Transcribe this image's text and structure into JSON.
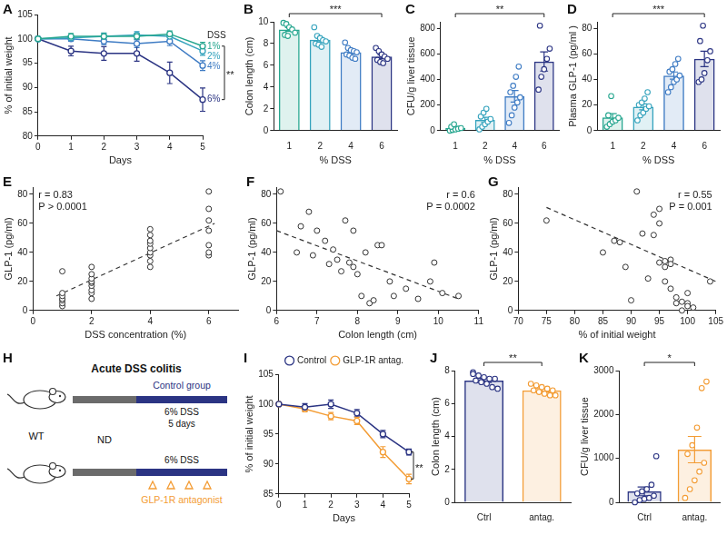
{
  "chart_data": [
    {
      "panel": "A",
      "type": "line",
      "x_label": "Days",
      "y_label": "% of initial weight",
      "x": [
        0,
        1,
        2,
        3,
        4,
        5
      ],
      "xlim": [
        0,
        5
      ],
      "xticks": [
        0,
        1,
        2,
        3,
        4,
        5
      ],
      "ylim": [
        80,
        105
      ],
      "yticks": [
        80,
        85,
        90,
        95,
        100,
        105
      ],
      "legend": "right",
      "legend_title": "DSS",
      "marker": "circle",
      "series": [
        {
          "name": "1%",
          "color": "#26a68f",
          "values": [
            100,
            100.5,
            100.5,
            100.5,
            101,
            98.5
          ],
          "errors": [
            0,
            0.6,
            0.7,
            0.6,
            0.6,
            0.8
          ]
        },
        {
          "name": "2%",
          "color": "#35a3bd",
          "values": [
            100,
            100.2,
            100.5,
            100.8,
            100.5,
            97.5
          ],
          "errors": [
            0,
            0.5,
            0.6,
            0.7,
            0.8,
            0.9
          ]
        },
        {
          "name": "4%",
          "color": "#3f7cc4",
          "values": [
            100,
            100,
            99.5,
            99,
            99.5,
            94.5
          ],
          "errors": [
            0,
            0.5,
            0.7,
            0.8,
            0.9,
            1.0
          ]
        },
        {
          "name": "6%",
          "color": "#2b3483",
          "values": [
            100,
            97.5,
            97,
            97,
            93,
            87.5
          ],
          "errors": [
            0,
            1.0,
            1.4,
            1.6,
            2.2,
            2.4
          ]
        }
      ],
      "annotations": [
        "**"
      ]
    },
    {
      "panel": "B",
      "type": "bar",
      "x_label": "% DSS",
      "y_label": "Colon length (cm)",
      "categories": [
        "1",
        "2",
        "4",
        "6"
      ],
      "values": [
        9.3,
        8.35,
        7.2,
        6.8
      ],
      "errors": [
        0.17,
        0.2,
        0.16,
        0.17
      ],
      "points": [
        [
          9.9,
          9.8,
          9.5,
          9.3,
          9.0,
          8.8,
          8.7
        ],
        [
          9.5,
          8.7,
          8.5,
          8.3,
          8.2,
          8.0,
          7.9,
          7.7
        ],
        [
          8.1,
          7.6,
          7.4,
          7.3,
          7.2,
          7.0,
          6.9,
          6.7,
          6.6
        ],
        [
          7.6,
          7.3,
          7.0,
          6.8,
          6.6,
          6.5,
          6.3,
          6.2
        ]
      ],
      "colors": [
        "#26a68f",
        "#35a3bd",
        "#3f7cc4",
        "#2b3483"
      ],
      "ylim": [
        0,
        10
      ],
      "yticks": [
        0,
        2,
        4,
        6,
        8,
        10
      ],
      "annotations": [
        "***"
      ]
    },
    {
      "panel": "C",
      "type": "bar",
      "x_label": "% DSS",
      "y_label": "CFU/g liver tissue",
      "categories": [
        "1",
        "2",
        "4",
        "6"
      ],
      "values": [
        19,
        84,
        268,
        540
      ],
      "errors": [
        7,
        20,
        45,
        75
      ],
      "points": [
        [
          0,
          5,
          10,
          15,
          20,
          30,
          50
        ],
        [
          10,
          30,
          50,
          70,
          90,
          110,
          140,
          170
        ],
        [
          60,
          120,
          180,
          220,
          260,
          300,
          350,
          420,
          500
        ],
        [
          320,
          420,
          480,
          560,
          640,
          820
        ]
      ],
      "colors": [
        "#26a68f",
        "#35a3bd",
        "#3f7cc4",
        "#2b3483"
      ],
      "ylim": [
        0,
        850
      ],
      "yticks": [
        0,
        200,
        400,
        600,
        800
      ],
      "annotations": [
        "**"
      ]
    },
    {
      "panel": "D",
      "type": "bar",
      "x_label": "% DSS",
      "y_label": "Plasma GLP-1 (pg/ml )",
      "categories": [
        "1",
        "2",
        "4",
        "6"
      ],
      "values": [
        10.3,
        18.6,
        43,
        56
      ],
      "errors": [
        3,
        2.3,
        2.8,
        6
      ],
      "points": [
        [
          3,
          5,
          7,
          8,
          10,
          12,
          27
        ],
        [
          8,
          12,
          14,
          17,
          19,
          20,
          22,
          25,
          30
        ],
        [
          30,
          34,
          38,
          40,
          43,
          46,
          48,
          52,
          56
        ],
        [
          38,
          40,
          45,
          55,
          62,
          70,
          82
        ]
      ],
      "colors": [
        "#26a68f",
        "#35a3bd",
        "#3f7cc4",
        "#2b3483"
      ],
      "ylim": [
        0,
        85
      ],
      "yticks": [
        0,
        20,
        40,
        60,
        80
      ],
      "annotations": [
        "***"
      ]
    },
    {
      "panel": "E",
      "type": "scatter",
      "x_label": "DSS concentration (%)",
      "y_label": "GLP-1 (pg/ml)",
      "xlim": [
        0,
        7
      ],
      "xticks": [
        0,
        2,
        4,
        6
      ],
      "ylim": [
        0,
        85
      ],
      "yticks": [
        0,
        20,
        40,
        60,
        80
      ],
      "series": [
        {
          "type": "scatter",
          "marker": "circle",
          "color": "#333333",
          "x": [
            1,
            1,
            1,
            1,
            1,
            1,
            1,
            2,
            2,
            2,
            2,
            2,
            2,
            2,
            2,
            2,
            4,
            4,
            4,
            4,
            4,
            4,
            4,
            4,
            4,
            6,
            6,
            6,
            6,
            6,
            6,
            6
          ],
          "values": [
            3,
            5,
            7,
            8,
            10,
            12,
            27,
            8,
            12,
            14,
            17,
            19,
            20,
            22,
            25,
            30,
            30,
            34,
            38,
            40,
            43,
            46,
            48,
            52,
            56,
            38,
            40,
            45,
            55,
            62,
            70,
            82
          ]
        },
        {
          "type": "line",
          "line_style": "dashed",
          "color": "#333333",
          "x": [
            0.8,
            6.2
          ],
          "values": [
            10,
            60
          ]
        }
      ],
      "annotations": [
        "r = 0.83",
        "P > 0.0001"
      ]
    },
    {
      "panel": "F",
      "type": "scatter",
      "x_label": "Colon length (cm)",
      "y_label": "GLP-1 (pg/ml)",
      "xlim": [
        6,
        11
      ],
      "xticks": [
        6,
        7,
        8,
        9,
        10,
        11
      ],
      "ylim": [
        0,
        85
      ],
      "yticks": [
        0,
        20,
        40,
        60,
        80
      ],
      "series": [
        {
          "type": "scatter",
          "marker": "circle",
          "color": "#333333",
          "x": [
            6.1,
            6.5,
            6.6,
            6.8,
            6.9,
            7.0,
            7.2,
            7.3,
            7.4,
            7.5,
            7.6,
            7.7,
            7.8,
            7.9,
            7.9,
            8.0,
            8.1,
            8.2,
            8.3,
            8.4,
            8.5,
            8.6,
            8.8,
            8.9,
            9.2,
            9.5,
            9.8,
            9.9,
            10.1,
            10.5
          ],
          "values": [
            82,
            40,
            58,
            68,
            38,
            55,
            48,
            32,
            42,
            35,
            27,
            62,
            33,
            55,
            30,
            25,
            10,
            40,
            5,
            7,
            45,
            45,
            20,
            10,
            15,
            8,
            20,
            33,
            12,
            10
          ]
        },
        {
          "type": "line",
          "line_style": "dashed",
          "color": "#333333",
          "x": [
            6,
            10.5
          ],
          "values": [
            55,
            8
          ]
        }
      ],
      "annotations": [
        "r = 0.6",
        "P = 0.0002"
      ]
    },
    {
      "panel": "G",
      "type": "scatter",
      "x_label": "% of initial weight",
      "y_label": "GLP-1 (pg/ml)",
      "xlim": [
        70,
        105
      ],
      "xticks": [
        70,
        75,
        80,
        85,
        90,
        95,
        100,
        105
      ],
      "ylim": [
        0,
        85
      ],
      "yticks": [
        0,
        20,
        40,
        60,
        80
      ],
      "series": [
        {
          "type": "scatter",
          "marker": "circle",
          "color": "#333333",
          "x": [
            75,
            85,
            87,
            88,
            89,
            90,
            91,
            92,
            93,
            94,
            94,
            95,
            95,
            95,
            96,
            96,
            96,
            97,
            97,
            97,
            98,
            98,
            99,
            99,
            100,
            100,
            100,
            101,
            104
          ],
          "values": [
            62,
            40,
            48,
            47,
            30,
            7,
            82,
            53,
            22,
            66,
            52,
            70,
            60,
            33,
            30,
            20,
            34,
            35,
            15,
            32,
            5,
            9,
            0,
            6,
            5,
            12,
            3,
            2,
            20
          ]
        },
        {
          "type": "line",
          "line_style": "dashed",
          "color": "#333333",
          "x": [
            75,
            105
          ],
          "values": [
            71,
            20
          ]
        }
      ],
      "annotations": [
        "r = 0.55",
        "P = 0.001"
      ]
    },
    {
      "panel": "I",
      "type": "line",
      "x_label": "Days",
      "y_label": "% of initial weight",
      "x": [
        0,
        1,
        2,
        3,
        4,
        5
      ],
      "xlim": [
        0,
        5
      ],
      "xticks": [
        0,
        1,
        2,
        3,
        4,
        5
      ],
      "ylim": [
        85,
        105
      ],
      "yticks": [
        85,
        90,
        95,
        100,
        105
      ],
      "legend": "top",
      "marker": "circle",
      "series": [
        {
          "name": "Control",
          "color": "#2b3483",
          "values": [
            100,
            99.5,
            100,
            98.5,
            95,
            92
          ],
          "errors": [
            0,
            0.6,
            0.7,
            0.6,
            0.6,
            0.5
          ]
        },
        {
          "name": "GLP-1R antag.",
          "color": "#f39c34",
          "values": [
            100,
            99.2,
            98,
            97.2,
            92,
            87.5
          ],
          "errors": [
            0,
            0.5,
            0.6,
            0.6,
            0.9,
            0.8
          ]
        }
      ],
      "annotations": [
        "**"
      ]
    },
    {
      "panel": "J",
      "type": "bar",
      "y_label": "Colon length (cm)",
      "categories": [
        "Ctrl",
        "antag."
      ],
      "values": [
        7.4,
        6.8
      ],
      "errors": [
        0.12,
        0.1
      ],
      "points": [
        [
          7.9,
          7.7,
          7.6,
          7.5,
          7.5,
          7.4,
          7.3,
          7.2,
          7.0,
          6.9,
          7.8
        ],
        [
          7.2,
          7.1,
          7.0,
          6.9,
          6.8,
          6.8,
          6.7,
          6.6,
          6.5,
          6.5
        ]
      ],
      "colors": [
        "#2b3483",
        "#f39c34"
      ],
      "ylim": [
        0,
        8
      ],
      "yticks": [
        0,
        2,
        4,
        6,
        8
      ],
      "annotations": [
        "**"
      ]
    },
    {
      "panel": "K",
      "type": "bar",
      "y_label": "CFU/g liver tissue",
      "categories": [
        "Ctrl",
        "antag."
      ],
      "values": [
        250,
        1200
      ],
      "errors": [
        100,
        300
      ],
      "points": [
        [
          0,
          50,
          80,
          100,
          150,
          200,
          250,
          300,
          400,
          1050
        ],
        [
          100,
          300,
          500,
          700,
          900,
          1100,
          1300,
          1700,
          2600,
          2750
        ]
      ],
      "colors": [
        "#2b3483",
        "#f39c34"
      ],
      "ylim": [
        0,
        3000
      ],
      "yticks": [
        0,
        1000,
        2000,
        3000
      ],
      "annotations": [
        "*"
      ]
    }
  ],
  "diagram": {
    "panel": "H",
    "title": "Acute DSS colitis",
    "strain": "WT",
    "diet": "ND",
    "control": {
      "label": "Control group",
      "treatment": "6% DSS",
      "duration": "5 days"
    },
    "treated": {
      "treatment": "6% DSS",
      "label": "GLP-1R antagonist"
    }
  }
}
